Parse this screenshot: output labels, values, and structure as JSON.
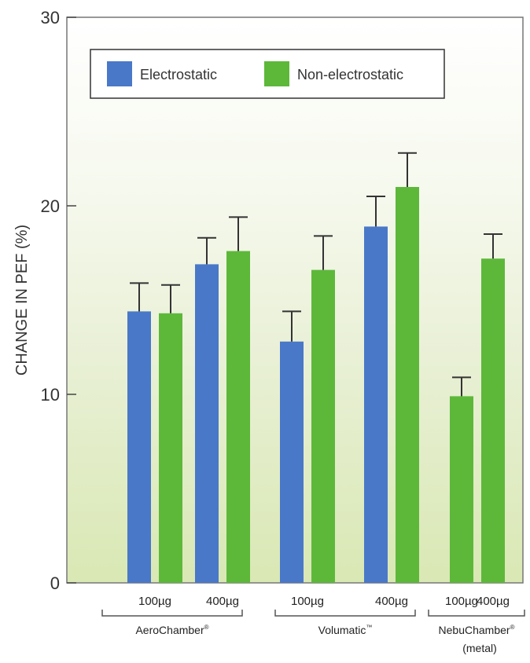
{
  "chart_data": {
    "type": "bar",
    "ylabel": "CHANGE IN PEF (%)",
    "ylim": [
      0,
      30
    ],
    "yticks": [
      "0",
      "10",
      "20",
      "30"
    ],
    "legend_position": "top",
    "series": [
      {
        "name": "Electrostatic",
        "color": "#4a78c8"
      },
      {
        "name": "Non-electrostatic",
        "color": "#5db83a"
      }
    ],
    "bars": [
      {
        "group": 0,
        "dose": 0,
        "series": 0,
        "value": 14.4,
        "error": 1.5
      },
      {
        "group": 0,
        "dose": 0,
        "series": 1,
        "value": 14.3,
        "error": 1.5
      },
      {
        "group": 0,
        "dose": 1,
        "series": 0,
        "value": 16.9,
        "error": 1.4
      },
      {
        "group": 0,
        "dose": 1,
        "series": 1,
        "value": 17.6,
        "error": 1.8
      },
      {
        "group": 1,
        "dose": 0,
        "series": 0,
        "value": 12.8,
        "error": 1.6
      },
      {
        "group": 1,
        "dose": 0,
        "series": 1,
        "value": 16.6,
        "error": 1.8
      },
      {
        "group": 1,
        "dose": 1,
        "series": 0,
        "value": 18.9,
        "error": 1.6
      },
      {
        "group": 1,
        "dose": 1,
        "series": 1,
        "value": 21.0,
        "error": 1.8
      },
      {
        "group": 2,
        "dose": 0,
        "series": 1,
        "value": 9.9,
        "error": 1.0
      },
      {
        "group": 2,
        "dose": 1,
        "series": 1,
        "value": 17.2,
        "error": 1.3
      }
    ],
    "dose_labels": [
      {
        "group": 0,
        "dose": 0,
        "text": "100µg"
      },
      {
        "group": 0,
        "dose": 1,
        "text": "400µg"
      },
      {
        "group": 1,
        "dose": 0,
        "text": "100µg"
      },
      {
        "group": 1,
        "dose": 1,
        "text": "400µg"
      },
      {
        "group": 2,
        "dose": 0,
        "text": "100µg"
      },
      {
        "group": 2,
        "dose": 1,
        "text": "400µg"
      }
    ],
    "groups": [
      {
        "label": "AeroChamber",
        "mark": "®",
        "sublabel": ""
      },
      {
        "label": "Volumatic",
        "mark": "™",
        "sublabel": ""
      },
      {
        "label": "NebuChamber",
        "mark": "®",
        "sublabel": "(metal)"
      }
    ]
  }
}
